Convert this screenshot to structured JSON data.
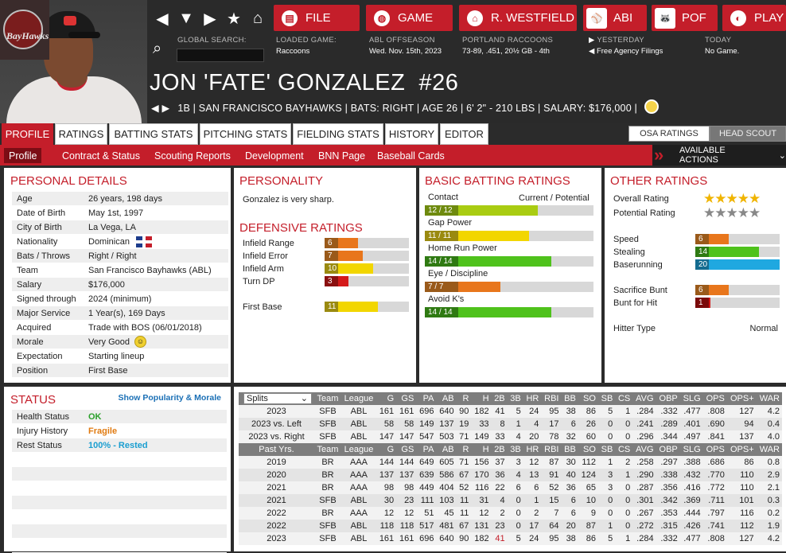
{
  "header": {
    "team_logo_text": "BayHawks",
    "nav_buttons": [
      {
        "label": "FILE",
        "icon": "file-icon"
      },
      {
        "label": "GAME",
        "icon": "globe-icon"
      },
      {
        "label": "R. WESTFIELD",
        "icon": "home-icon"
      },
      {
        "label": "ABI",
        "icon": "league-logo-icon"
      },
      {
        "label": "POF",
        "icon": "team-logo-icon"
      },
      {
        "label": "PLAY",
        "icon": "baseball-icon"
      }
    ],
    "global_search_label": "GLOBAL SEARCH:",
    "global_search_value": "",
    "loaded_game_label": "LOADED GAME:",
    "loaded_game_value": "Raccoons",
    "season_label": "ABL OFFSEASON",
    "season_date": "Wed. Nov. 15th, 2023",
    "team_label": "PORTLAND RACCOONS",
    "team_record": "73-89, .451, 20½ GB - 4th",
    "yesterday_label": "YESTERDAY",
    "yesterday_value": "Free Agency Filings",
    "today_label": "TODAY",
    "today_value": "No Game."
  },
  "player": {
    "name": "JON 'FATE' GONZALEZ",
    "number": "#26",
    "info_line": "1B | SAN FRANCISCO BAYHAWKS | BATS: RIGHT | AGE 26 | 6' 2\" - 210 LBS | SALARY: $176,000 |"
  },
  "tabs": [
    "PROFILE",
    "RATINGS",
    "BATTING STATS",
    "PITCHING STATS",
    "FIELDING STATS",
    "HISTORY",
    "EDITOR"
  ],
  "rating_toggles": [
    "OSA RATINGS",
    "HEAD SCOUT"
  ],
  "subtabs": [
    "Profile",
    "Contract & Status",
    "Scouting Reports",
    "Development",
    "BNN Page",
    "Baseball Cards"
  ],
  "available_actions": "AVAILABLE ACTIONS",
  "personal_details": {
    "title": "PERSONAL DETAILS",
    "rows": [
      {
        "k": "Age",
        "v": "26 years, 198 days"
      },
      {
        "k": "Date of Birth",
        "v": "May 1st, 1997"
      },
      {
        "k": "City of Birth",
        "v": "La Vega, LA"
      },
      {
        "k": "Nationality",
        "v": "Dominican"
      },
      {
        "k": "Bats / Throws",
        "v": "Right / Right"
      },
      {
        "k": "Team",
        "v": "San Francisco Bayhawks (ABL)"
      },
      {
        "k": "Salary",
        "v": "$176,000"
      },
      {
        "k": "Signed through",
        "v": "2024 (minimum)"
      },
      {
        "k": "Major Service",
        "v": "1 Year(s), 169 Days"
      },
      {
        "k": "Acquired",
        "v": "Trade with BOS (06/01/2018)"
      },
      {
        "k": "Morale",
        "v": "Very Good"
      },
      {
        "k": "Expectation",
        "v": "Starting lineup"
      },
      {
        "k": "Position",
        "v": "First Base"
      }
    ]
  },
  "personality": {
    "title": "PERSONALITY",
    "text": "Gonzalez is very sharp."
  },
  "defensive": {
    "title": "DEFENSIVE RATINGS",
    "rows": [
      {
        "label": "Infield Range",
        "value": "6",
        "level": 0.4,
        "color": "#e8761c",
        "badge": "#9a5a1a"
      },
      {
        "label": "Infield Error",
        "value": "7",
        "level": 0.45,
        "color": "#e8761c",
        "badge": "#9a5a1a"
      },
      {
        "label": "Infield Arm",
        "value": "10",
        "level": 0.58,
        "color": "#f2d600",
        "badge": "#9a8a10"
      },
      {
        "label": "Turn DP",
        "value": "3",
        "level": 0.28,
        "color": "#d41a1a",
        "badge": "#8a1010"
      },
      {
        "label": "First Base",
        "value": "11",
        "level": 0.63,
        "color": "#f2d600",
        "badge": "#9a8a10"
      }
    ]
  },
  "basic_batting": {
    "title": "BASIC BATTING RATINGS",
    "header_right": "Current / Potential",
    "rows": [
      {
        "label": "Contact",
        "value": "12 / 12",
        "level": 0.67,
        "color": "#a9cc12",
        "badge": "#6e8a0e"
      },
      {
        "label": "Gap Power",
        "value": "11 / 11",
        "level": 0.62,
        "color": "#f2d600",
        "badge": "#9a8a10"
      },
      {
        "label": "Home Run Power",
        "value": "14 / 14",
        "level": 0.75,
        "color": "#4fc21c",
        "badge": "#2f7a12"
      },
      {
        "label": "Eye / Discipline",
        "value": "7 / 7",
        "level": 0.45,
        "color": "#e8761c",
        "badge": "#9a5a1a"
      },
      {
        "label": "Avoid K's",
        "value": "14 / 14",
        "level": 0.75,
        "color": "#4fc21c",
        "badge": "#2f7a12"
      }
    ]
  },
  "other_ratings": {
    "title": "OTHER RATINGS",
    "overall_label": "Overall Rating",
    "overall_stars": 4.5,
    "potential_label": "Potential Rating",
    "potential_stars": 4.5,
    "rows": [
      {
        "label": "Speed",
        "value": "6",
        "level": 0.4,
        "color": "#e8761c",
        "badge": "#9a5a1a"
      },
      {
        "label": "Stealing",
        "value": "14",
        "level": 0.75,
        "color": "#4fc21c",
        "badge": "#2f7a12"
      },
      {
        "label": "Baserunning",
        "value": "20",
        "level": 1.0,
        "color": "#1fa8e0",
        "badge": "#146c90"
      },
      {
        "label": "Sacrifice Bunt",
        "value": "6",
        "level": 0.4,
        "color": "#e8761c",
        "badge": "#9a5a1a"
      },
      {
        "label": "Bunt for Hit",
        "value": "1",
        "level": 0.18,
        "color": "#d41a1a",
        "badge": "#7a0a0a"
      }
    ],
    "hitter_type_label": "Hitter Type",
    "hitter_type_value": "Normal"
  },
  "status": {
    "title": "STATUS",
    "link": "Show Popularity & Morale",
    "rows": [
      {
        "k": "Health Status",
        "v": "OK",
        "color": "#2aa02a"
      },
      {
        "k": "Injury History",
        "v": "Fragile",
        "color": "#e07a10"
      },
      {
        "k": "Rest Status",
        "v": "100% - Rested",
        "color": "#1a9ed0"
      }
    ]
  },
  "stats": {
    "split_select": "Splits",
    "columns": [
      "Team",
      "League",
      "G",
      "GS",
      "PA",
      "AB",
      "R",
      "H",
      "2B",
      "3B",
      "HR",
      "RBI",
      "BB",
      "SO",
      "SB",
      "CS",
      "AVG",
      "OBP",
      "SLG",
      "OPS",
      "OPS+",
      "WAR"
    ],
    "split_rows": [
      [
        "2023",
        "SFB",
        "ABL",
        "161",
        "161",
        "696",
        "640",
        "90",
        "182",
        "41",
        "5",
        "24",
        "95",
        "38",
        "86",
        "5",
        "1",
        ".284",
        ".332",
        ".477",
        ".808",
        "127",
        "4.2"
      ],
      [
        "2023 vs. Left",
        "SFB",
        "ABL",
        "58",
        "58",
        "149",
        "137",
        "19",
        "33",
        "8",
        "1",
        "4",
        "17",
        "6",
        "26",
        "0",
        "0",
        ".241",
        ".289",
        ".401",
        ".690",
        "94",
        "0.4"
      ],
      [
        "2023 vs. Right",
        "SFB",
        "ABL",
        "147",
        "147",
        "547",
        "503",
        "71",
        "149",
        "33",
        "4",
        "20",
        "78",
        "32",
        "60",
        "0",
        "0",
        ".296",
        ".344",
        ".497",
        ".841",
        "137",
        "4.0"
      ]
    ],
    "past_header": "Past Yrs.",
    "past_rows": [
      [
        "2019",
        "BR",
        "AAA",
        "144",
        "144",
        "649",
        "605",
        "71",
        "156",
        "37",
        "3",
        "12",
        "87",
        "30",
        "112",
        "1",
        "2",
        ".258",
        ".297",
        ".388",
        ".686",
        "86",
        "0.8"
      ],
      [
        "2020",
        "BR",
        "AAA",
        "137",
        "137",
        "639",
        "586",
        "67",
        "170",
        "36",
        "4",
        "13",
        "91",
        "40",
        "124",
        "3",
        "1",
        ".290",
        ".338",
        ".432",
        ".770",
        "110",
        "2.9"
      ],
      [
        "2021",
        "BR",
        "AAA",
        "98",
        "98",
        "449",
        "404",
        "52",
        "116",
        "22",
        "6",
        "6",
        "52",
        "36",
        "65",
        "3",
        "0",
        ".287",
        ".356",
        ".416",
        ".772",
        "110",
        "2.1"
      ],
      [
        "2021",
        "SFB",
        "ABL",
        "30",
        "23",
        "111",
        "103",
        "11",
        "31",
        "4",
        "0",
        "1",
        "15",
        "6",
        "10",
        "0",
        "0",
        ".301",
        ".342",
        ".369",
        ".711",
        "101",
        "0.3"
      ],
      [
        "2022",
        "BR",
        "AAA",
        "12",
        "12",
        "51",
        "45",
        "11",
        "12",
        "2",
        "0",
        "2",
        "7",
        "6",
        "9",
        "0",
        "0",
        ".267",
        ".353",
        ".444",
        ".797",
        "116",
        "0.2"
      ],
      [
        "2022",
        "SFB",
        "ABL",
        "118",
        "118",
        "517",
        "481",
        "67",
        "131",
        "23",
        "0",
        "17",
        "64",
        "20",
        "87",
        "1",
        "0",
        ".272",
        ".315",
        ".426",
        ".741",
        "112",
        "1.9"
      ],
      [
        "2023",
        "SFB",
        "ABL",
        "161",
        "161",
        "696",
        "640",
        "90",
        "182",
        "41",
        "5",
        "24",
        "95",
        "38",
        "86",
        "5",
        "1",
        ".284",
        ".332",
        ".477",
        ".808",
        "127",
        "4.2"
      ]
    ]
  }
}
